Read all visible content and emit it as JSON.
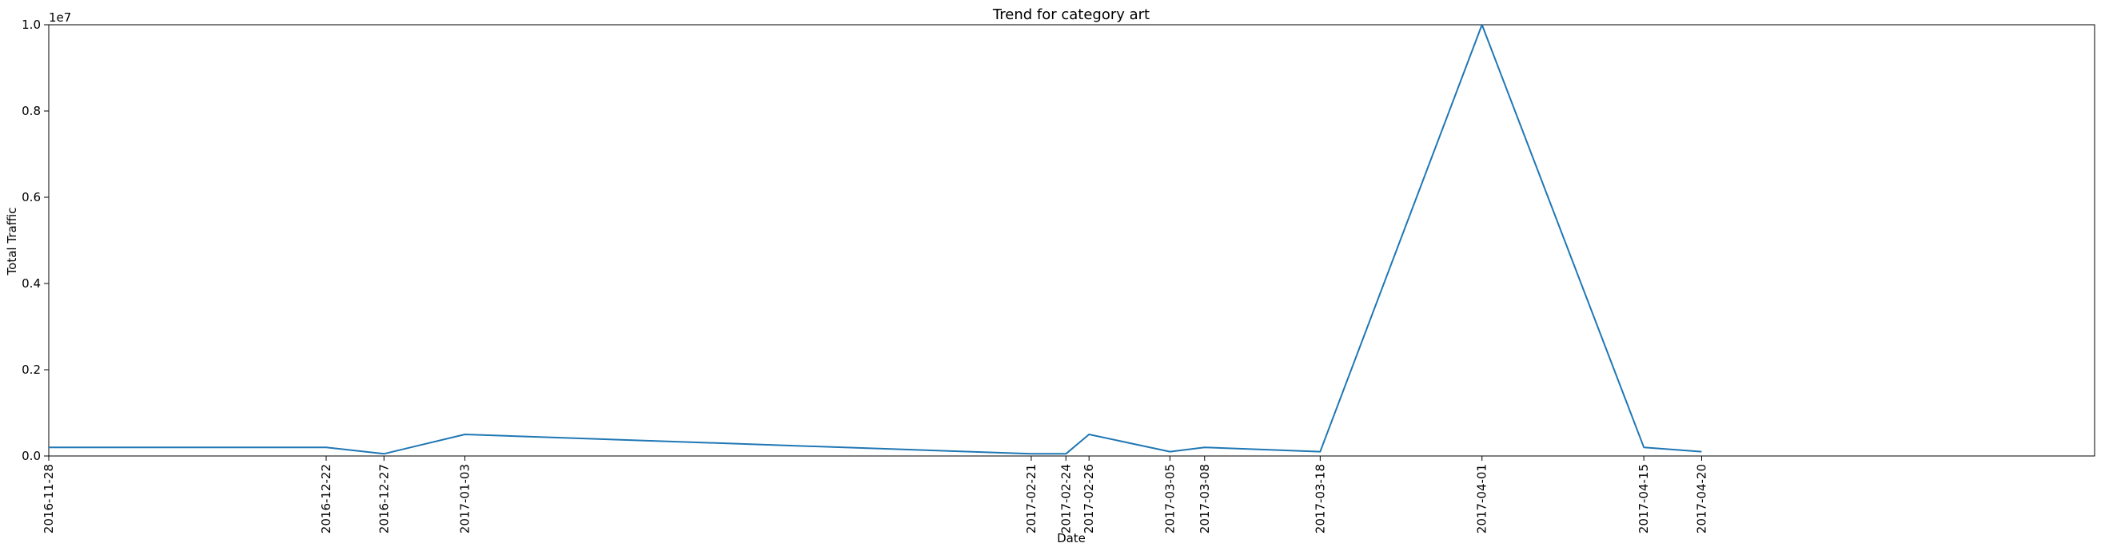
{
  "chart_data": {
    "type": "line",
    "title": "Trend for category art",
    "xlabel": "Date",
    "ylabel": "Total Traffic",
    "y_offset_text": "1e7",
    "ylim": [
      0,
      1.0
    ],
    "y_ticks": [
      "0.0",
      "0.2",
      "0.4",
      "0.6",
      "0.8",
      "1.0"
    ],
    "x_tick_labels": [
      "2016-11-28",
      "2016-12-22",
      "2016-12-27",
      "2017-01-03",
      "2017-02-21",
      "2017-02-24",
      "2017-02-26",
      "2017-03-05",
      "2017-03-08",
      "2017-03-18",
      "2017-04-01",
      "2017-04-15",
      "2017-04-20"
    ],
    "grid": false,
    "series": [
      {
        "color": "#1f77b4",
        "points": [
          {
            "x": "2016-11-28",
            "y": 200000
          },
          {
            "x": "2016-12-22",
            "y": 200000
          },
          {
            "x": "2016-12-27",
            "y": 50000
          },
          {
            "x": "2017-01-03",
            "y": 500000
          },
          {
            "x": "2017-02-21",
            "y": 50000
          },
          {
            "x": "2017-02-24",
            "y": 50000
          },
          {
            "x": "2017-02-26",
            "y": 500000
          },
          {
            "x": "2017-03-05",
            "y": 100000
          },
          {
            "x": "2017-03-08",
            "y": 200000
          },
          {
            "x": "2017-03-18",
            "y": 100000
          },
          {
            "x": "2017-04-01",
            "y": 10000000
          },
          {
            "x": "2017-04-15",
            "y": 200000
          },
          {
            "x": "2017-04-20",
            "y": 100000
          }
        ]
      }
    ]
  }
}
